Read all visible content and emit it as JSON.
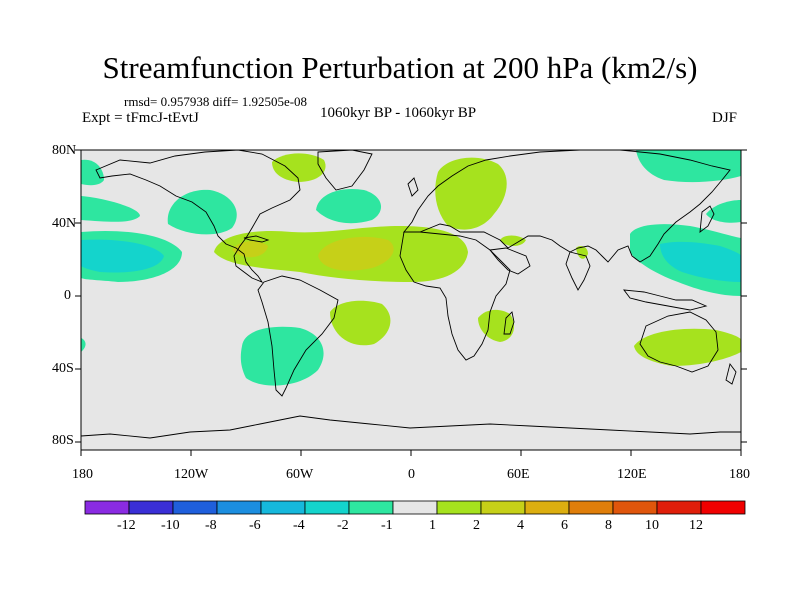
{
  "figure": {
    "title": "Streamfunction Perturbation at 200 hPa (km2/s)",
    "stats": "rmsd= 0.957938 diff= 1.92505e-08",
    "experiment": "Expt = tFmcJ-tEvtJ",
    "period": "1060kyr BP - 1060kyr BP",
    "season": "DJF"
  },
  "axes": {
    "lat_ticks": [
      "80N",
      "40N",
      "0",
      "40S",
      "80S"
    ],
    "lon_ticks": [
      "180",
      "120W",
      "60W",
      "0",
      "60E",
      "120E",
      "180"
    ]
  },
  "colorbar": {
    "labels": [
      "-12",
      "-10",
      "-8",
      "-6",
      "-4",
      "-2",
      "-1",
      "1",
      "2",
      "4",
      "6",
      "8",
      "10",
      "12"
    ],
    "colors": [
      "#8a2be2",
      "#3a2fd6",
      "#1f5fdc",
      "#1c8ee0",
      "#16b8dc",
      "#14d4cc",
      "#2ee6a0",
      "#e6e6e6",
      "#a6e21e",
      "#c6d018",
      "#dcae10",
      "#e07e0a",
      "#e0560c",
      "#e01e0a",
      "#f00000"
    ]
  },
  "colors": {
    "background": "#e6e6e6",
    "coast": "#000000"
  }
}
